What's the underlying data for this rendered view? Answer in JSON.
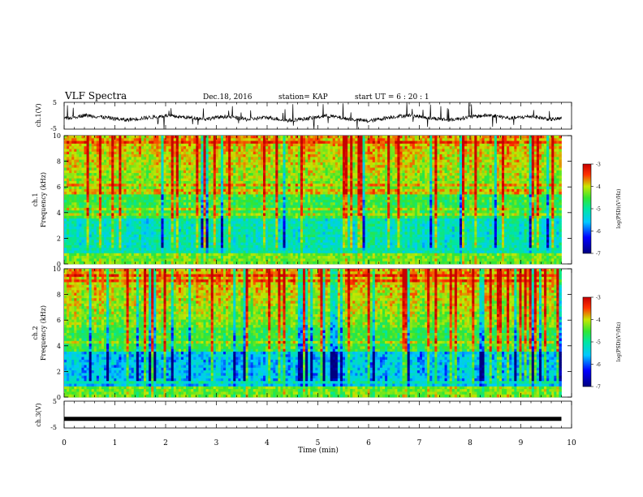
{
  "header": {
    "title": "VLF Spectra",
    "date": "Dec.18, 2016",
    "station": "station= KAP",
    "start": "start  UT  =   6  : 20 : 1"
  },
  "chart_data": [
    {
      "type": "line",
      "panel": "ch1-waveform",
      "ylabel": "ch.1(V)",
      "ylim": [
        -5,
        5
      ],
      "ytick_labels": [
        "-5",
        "5"
      ],
      "xlim": [
        0,
        10
      ],
      "x_extent": [
        0,
        9.8
      ],
      "trend_points": [
        {
          "x": 0.0,
          "y": -1.2
        },
        {
          "x": 0.4,
          "y": 0.2
        },
        {
          "x": 0.8,
          "y": -0.6
        },
        {
          "x": 1.2,
          "y": -1.6
        },
        {
          "x": 1.6,
          "y": -0.8
        },
        {
          "x": 2.0,
          "y": 0.0
        },
        {
          "x": 2.4,
          "y": -0.6
        },
        {
          "x": 2.8,
          "y": -1.2
        },
        {
          "x": 3.2,
          "y": -0.2
        },
        {
          "x": 3.6,
          "y": -1.4
        },
        {
          "x": 4.0,
          "y": -0.6
        },
        {
          "x": 4.4,
          "y": -1.8
        },
        {
          "x": 4.8,
          "y": -1.0
        },
        {
          "x": 5.2,
          "y": 0.0
        },
        {
          "x": 5.6,
          "y": -1.2
        },
        {
          "x": 6.0,
          "y": -2.0
        },
        {
          "x": 6.4,
          "y": -0.6
        },
        {
          "x": 6.8,
          "y": 0.2
        },
        {
          "x": 7.2,
          "y": -0.8
        },
        {
          "x": 7.6,
          "y": -1.6
        },
        {
          "x": 8.0,
          "y": -0.4
        },
        {
          "x": 8.4,
          "y": 0.2
        },
        {
          "x": 8.8,
          "y": -1.0
        },
        {
          "x": 9.2,
          "y": -0.2
        },
        {
          "x": 9.6,
          "y": -1.4
        },
        {
          "x": 9.8,
          "y": -1.0
        }
      ]
    },
    {
      "type": "heatmap",
      "panel": "ch1-spectrogram",
      "ylabel_top": "ch.1",
      "ylabel": "Frequency (kHz)",
      "ylim": [
        0,
        10
      ],
      "yticks": [
        0,
        2,
        4,
        6,
        8,
        10
      ],
      "ytick_labels": [
        "0",
        "2",
        "4",
        "6",
        "8",
        "10"
      ],
      "xlim": [
        0,
        10
      ],
      "x_extent": [
        0,
        9.8
      ],
      "colorbar": {
        "label": "log(PSD)(V²/Hz)",
        "range": [
          -7,
          -3
        ],
        "ticks": [
          "-3",
          "-4",
          "-5",
          "-6",
          "-7"
        ]
      }
    },
    {
      "type": "heatmap",
      "panel": "ch2-spectrogram",
      "ylabel_top": "ch.2",
      "ylabel": "Frequency (kHz)",
      "ylim": [
        0,
        10
      ],
      "yticks": [
        0,
        2,
        4,
        6,
        8,
        10
      ],
      "ytick_labels": [
        "0",
        "2",
        "4",
        "6",
        "8",
        "10"
      ],
      "xlim": [
        0,
        10
      ],
      "x_extent": [
        0,
        9.8
      ],
      "colorbar": {
        "label": "log(PSD)(V²/Hz)",
        "range": [
          -7,
          -3
        ],
        "ticks": [
          "-3",
          "-4",
          "-5",
          "-6",
          "-7"
        ]
      }
    },
    {
      "type": "line",
      "panel": "ch3-waveform",
      "ylabel": "ch.3(V)",
      "ylim": [
        -5,
        5
      ],
      "ytick_labels": [
        "-5",
        "5"
      ],
      "xlim": [
        0,
        10
      ],
      "x_extent": [
        0,
        9.8
      ],
      "trend_points": [
        {
          "x": 0.0,
          "y": -1.6
        },
        {
          "x": 9.8,
          "y": -1.6
        }
      ]
    }
  ],
  "xaxis": {
    "label": "Time (min)",
    "ticks": [
      "0",
      "1",
      "2",
      "3",
      "4",
      "5",
      "6",
      "7",
      "8",
      "9",
      "10"
    ]
  },
  "colors": {
    "line": "#000000",
    "colormap": [
      "#00007f",
      "#0000ff",
      "#00c8ff",
      "#00e6a0",
      "#32e632",
      "#c8e600",
      "#ff3200",
      "#c80000"
    ]
  }
}
